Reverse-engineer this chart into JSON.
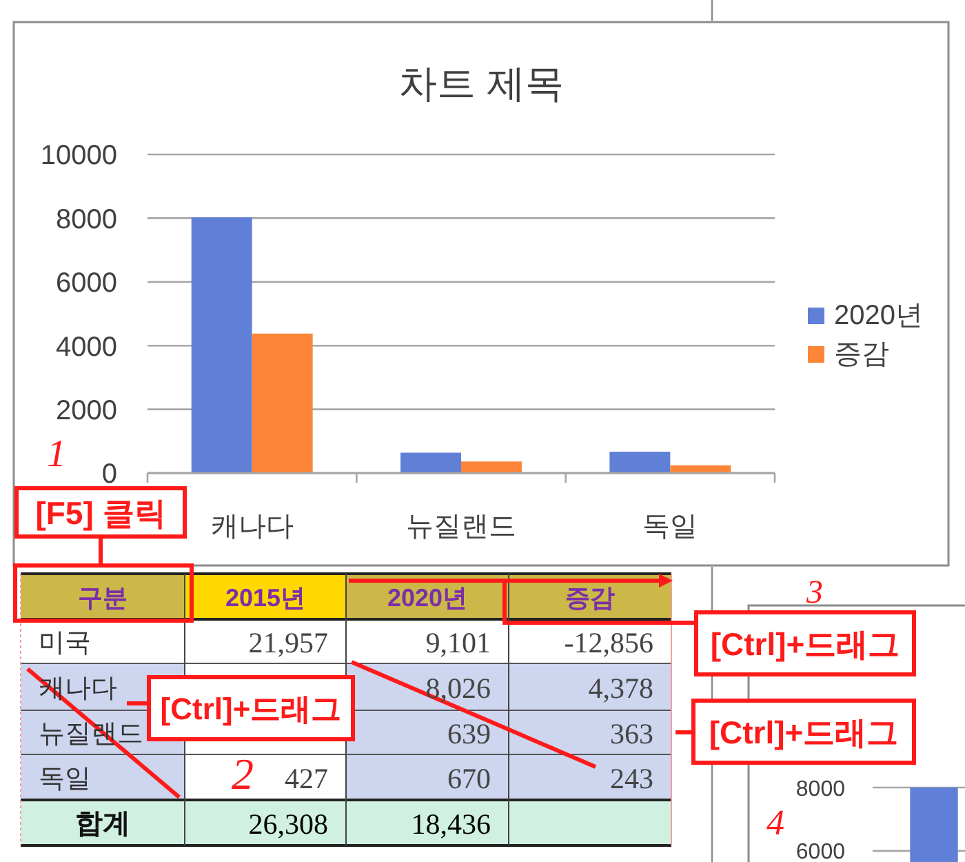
{
  "chart_data": [
    {
      "type": "bar",
      "title": "차트 제목",
      "categories": [
        "캐나다",
        "뉴질랜드",
        "독일"
      ],
      "series": [
        {
          "name": "2020년",
          "color": "#6080d7",
          "values": [
            8026,
            639,
            670
          ]
        },
        {
          "name": "증감",
          "color": "#fd8538",
          "values": [
            4378,
            363,
            243
          ]
        }
      ],
      "ylim": [
        0,
        10000
      ],
      "yticks": [
        0,
        2000,
        4000,
        6000,
        8000,
        10000
      ],
      "grid": "y",
      "legend": "right"
    },
    {
      "type": "other",
      "categories": [
        "구분",
        "2015년",
        "2020년",
        "증감"
      ],
      "y_categories": [
        "미국",
        "캐나다",
        "뉴질랜드",
        "독일",
        "합계"
      ],
      "cell_labels": [
        [
          "21,957",
          "9,101",
          "-12,856"
        ],
        [
          null,
          "8,026",
          "4,378"
        ],
        [
          null,
          "639",
          "363"
        ],
        [
          "427",
          "670",
          "243"
        ],
        [
          "26,308",
          "18,436",
          null
        ]
      ],
      "annotations": [
        "[F5] 클릭",
        "[Ctrl]+드래그",
        "[Ctrl]+드래그",
        "[Ctrl]+드래그",
        "1",
        "2",
        "3",
        "4"
      ]
    },
    {
      "type": "bar",
      "categories": [
        null
      ],
      "series": [
        {
          "color": "#6080d7",
          "values": [
            8000
          ]
        }
      ],
      "ylim": [
        5650,
        8000
      ],
      "yticks": [
        6000,
        8000
      ],
      "grid": "y"
    }
  ]
}
